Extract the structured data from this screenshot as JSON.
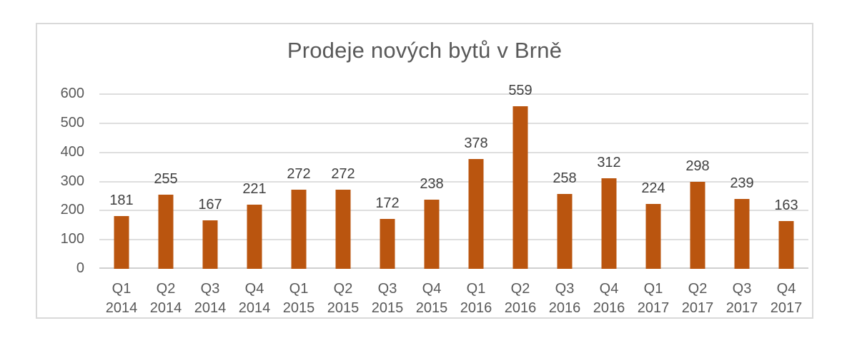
{
  "chart_data": {
    "type": "bar",
    "title": "Prodeje nových bytů v Brně",
    "categories": [
      "Q1 2014",
      "Q2 2014",
      "Q3 2014",
      "Q4 2014",
      "Q1 2015",
      "Q2 2015",
      "Q3 2015",
      "Q4 2015",
      "Q1 2016",
      "Q2 2016",
      "Q3 2016",
      "Q4 2016",
      "Q1 2017",
      "Q2 2017",
      "Q3 2017",
      "Q4 2017"
    ],
    "values": [
      181,
      255,
      167,
      221,
      272,
      272,
      172,
      238,
      378,
      559,
      258,
      312,
      224,
      298,
      239,
      163
    ],
    "xlabel": "",
    "ylabel": "",
    "ylim": [
      0,
      600
    ],
    "yticks": [
      0,
      100,
      200,
      300,
      400,
      500,
      600
    ],
    "grid": true,
    "legend": false,
    "data_labels": true,
    "colors": {
      "bar": "#BA550F",
      "gridline": "#DEDEDE",
      "axis_line": "#CFCFCF",
      "axis_labels": "#595959",
      "data_labels": "#404040",
      "title": "#595959",
      "frame_border": "#D9D9D9",
      "background": "#FFFFFF"
    }
  }
}
